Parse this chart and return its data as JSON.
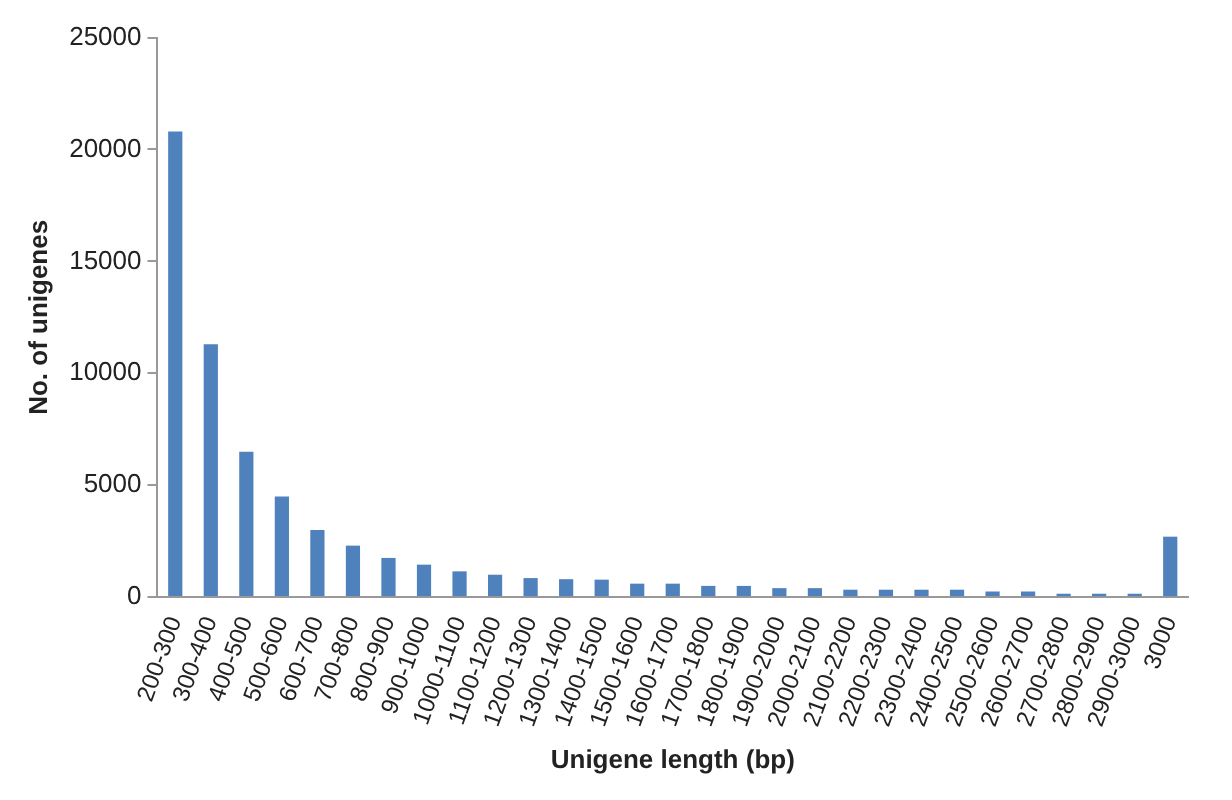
{
  "chart_data": {
    "type": "bar",
    "xlabel": "Unigene length (bp)",
    "ylabel": "No. of unigenes",
    "categories": [
      "200-300",
      "300-400",
      "400-500",
      "500-600",
      "600-700",
      "700-800",
      "800-900",
      "900-1000",
      "1000-1100",
      "1100-1200",
      "1200-1300",
      "1300-1400",
      "1400-1500",
      "1500-1600",
      "1600-1700",
      "1700-1800",
      "1800-1900",
      "1900-2000",
      "2000-2100",
      "2100-2200",
      "2200-2300",
      "2300-2400",
      "2400-2500",
      "2500-2600",
      "2600-2700",
      "2700-2800",
      "2800-2900",
      "2900-3000",
      "3000"
    ],
    "values": [
      20800,
      11300,
      6500,
      4500,
      3000,
      2300,
      1750,
      1450,
      1150,
      1000,
      850,
      800,
      780,
      600,
      600,
      500,
      500,
      400,
      400,
      330,
      330,
      330,
      330,
      250,
      250,
      150,
      150,
      150,
      2700
    ],
    "color": "#4f81bd",
    "ylim": [
      0,
      25000
    ],
    "yticks": [
      0,
      5000,
      10000,
      15000,
      20000,
      25000
    ],
    "grid": false,
    "legend": false
  }
}
